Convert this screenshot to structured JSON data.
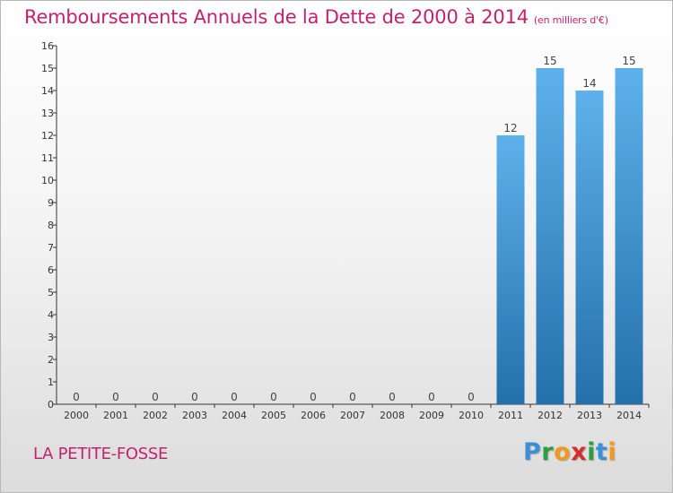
{
  "title": "Remboursements Annuels de la Dette de 2000 à 2014",
  "unit_note": "(en milliers d'€)",
  "place_name": "LA PETITE-FOSSE",
  "logo": {
    "letters": [
      "P",
      "r",
      "o",
      "x",
      "i",
      "t",
      "i"
    ],
    "colors": [
      "#3b8fd9",
      "#2f9e3f",
      "#f39a1c",
      "#d82b2b",
      "#2f9e3f",
      "#3b8fd9",
      "#f39a1c"
    ]
  },
  "colors": {
    "title": "#c4226e",
    "bar_top": "#5eb1ea",
    "bar_bottom": "#2470ab",
    "axis": "#333333"
  },
  "chart_data": {
    "type": "bar",
    "categories": [
      "2000",
      "2001",
      "2002",
      "2003",
      "2004",
      "2005",
      "2006",
      "2007",
      "2008",
      "2009",
      "2010",
      "2011",
      "2012",
      "2013",
      "2014"
    ],
    "values": [
      0,
      0,
      0,
      0,
      0,
      0,
      0,
      0,
      0,
      0,
      0,
      12,
      15,
      14,
      15
    ],
    "data_labels": [
      "0",
      "0",
      "0",
      "0",
      "0",
      "0",
      "0",
      "0",
      "0",
      "0",
      "0",
      "12",
      "15",
      "14",
      "15"
    ],
    "y_ticks": [
      "0",
      "1",
      "2",
      "3",
      "4",
      "5",
      "6",
      "7",
      "8",
      "9",
      "10",
      "11",
      "12",
      "13",
      "14",
      "15",
      "16"
    ],
    "ylim": [
      0,
      16
    ],
    "grid": false,
    "legend": "none"
  }
}
